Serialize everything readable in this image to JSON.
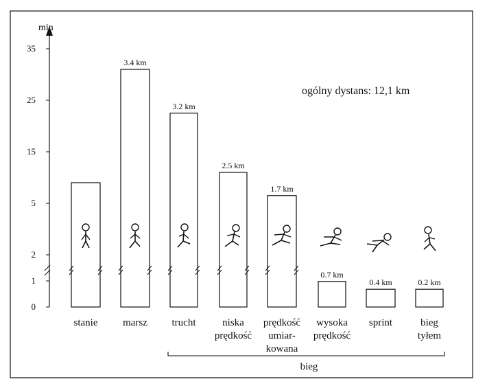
{
  "chart_data": {
    "type": "bar",
    "ylabel": "min",
    "y_ticks": [
      "0",
      "1",
      "2",
      "5",
      "15",
      "25",
      "35"
    ],
    "categories": [
      {
        "lines": [
          "stanie"
        ]
      },
      {
        "lines": [
          "marsz"
        ]
      },
      {
        "lines": [
          "trucht"
        ]
      },
      {
        "lines": [
          "niska",
          "prędkość"
        ]
      },
      {
        "lines": [
          "prędkość",
          "umiar-",
          "kowana"
        ]
      },
      {
        "lines": [
          "wysoka",
          "prędkość"
        ]
      },
      {
        "lines": [
          "sprint"
        ]
      },
      {
        "lines": [
          "bieg",
          "tyłem"
        ]
      }
    ],
    "values": [
      9,
      31,
      22.5,
      11,
      6.5,
      0.98,
      0.68,
      0.68
    ],
    "distance_labels": [
      "",
      "3.4 km",
      "3.2 km",
      "2.5 km",
      "1.7 km",
      "0.7 km",
      "0.4 km",
      "0.2 km"
    ],
    "group_label": "bieg",
    "annotation": "ogólny dystans: 12,1 km"
  }
}
